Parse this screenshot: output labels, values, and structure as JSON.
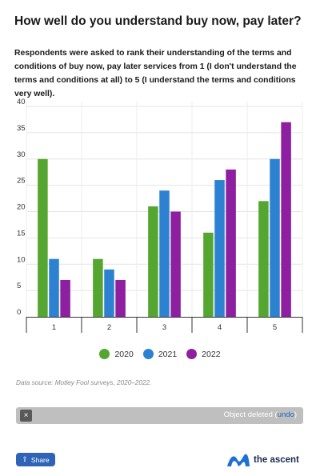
{
  "header": {
    "title": "How well do you understand buy now, pay later?",
    "subtitle": "Respondents were asked to rank their understanding of the terms and conditions of buy now, pay later services from 1 (I don't understand the terms and conditions at all) to 5 (I understand the terms and conditions very well)."
  },
  "chart_data": {
    "type": "bar",
    "title": "How well do you understand buy now, pay later?",
    "categories": [
      "1",
      "2",
      "3",
      "4",
      "5"
    ],
    "series": [
      {
        "name": "2020",
        "color": "#55a630",
        "values": [
          30,
          11,
          21,
          16,
          22
        ]
      },
      {
        "name": "2021",
        "color": "#2c82d0",
        "values": [
          11,
          9,
          24,
          26,
          30
        ]
      },
      {
        "name": "2022",
        "color": "#8d1fa0",
        "values": [
          7,
          7,
          20,
          28,
          37
        ]
      }
    ],
    "ylim": [
      0,
      40
    ],
    "yticks": [
      "0",
      "5",
      "10",
      "15",
      "20",
      "25",
      "30",
      "35",
      "40"
    ],
    "xlabel": "",
    "ylabel": "",
    "grid": true,
    "legend_position": "bottom"
  },
  "footer": {
    "source": "Data source: Motley Fool surveys, 2020–2022."
  },
  "toast": {
    "close_label": "×",
    "message": "Object deleted",
    "open_paren": " (",
    "link_label": "undo",
    "close_paren": ")"
  },
  "share": {
    "icon": "share-icon",
    "label": "Share"
  },
  "brand": {
    "name": "the ascent",
    "mark_color": "#1e6fd6"
  }
}
